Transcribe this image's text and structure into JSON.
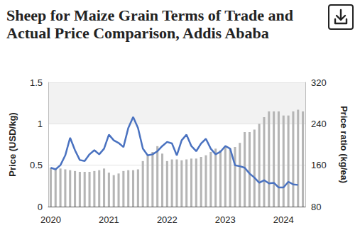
{
  "chart_data": {
    "type": "combo",
    "title": "Sheep for Maize Grain Terms of Trade and Actual Price Comparison, Addis Ababa",
    "ylabel": "Price (USD/kg)",
    "y2label": "Price ratio (kg/ea)",
    "categories": [
      "2020",
      null,
      null,
      null,
      null,
      null,
      null,
      null,
      null,
      null,
      null,
      null,
      "2021",
      null,
      null,
      null,
      null,
      null,
      null,
      null,
      null,
      null,
      null,
      null,
      "2022",
      null,
      null,
      null,
      null,
      null,
      null,
      null,
      null,
      null,
      null,
      null,
      "2023",
      null,
      null,
      null,
      null,
      null,
      null,
      null,
      null,
      null,
      null,
      null,
      "2024",
      null,
      null,
      null,
      null
    ],
    "series": [
      {
        "type": "bar",
        "color": "#b5b5b5",
        "values": [
          0.47,
          0.46,
          0.46,
          0.45,
          0.44,
          0.43,
          0.42,
          0.42,
          0.42,
          0.43,
          0.44,
          0.46,
          0.41,
          0.38,
          0.4,
          0.43,
          0.44,
          0.44,
          0.45,
          0.55,
          0.62,
          0.66,
          0.73,
          0.64,
          0.55,
          0.57,
          0.57,
          0.56,
          0.57,
          0.58,
          0.58,
          0.6,
          0.62,
          0.66,
          0.7,
          0.68,
          0.72,
          0.7,
          0.72,
          0.77,
          0.9,
          0.9,
          0.93,
          1.0,
          1.08,
          1.15,
          1.15,
          1.15,
          1.1,
          1.1,
          1.15,
          1.17,
          1.15
        ]
      },
      {
        "type": "line",
        "color": "#4a72c0",
        "axis": "y2",
        "values": [
          155,
          152,
          160,
          179,
          213,
          189,
          170,
          168,
          181,
          189,
          181,
          192,
          219,
          208,
          203,
          195,
          232,
          253,
          232,
          192,
          179,
          181,
          187,
          197,
          205,
          202,
          179,
          208,
          219,
          197,
          187,
          202,
          211,
          192,
          181,
          186,
          197,
          192,
          160,
          158,
          155,
          144,
          136,
          126,
          131,
          125,
          126,
          117,
          117,
          128,
          123,
          122,
          null
        ]
      }
    ],
    "ylim": [
      0,
      1.5
    ],
    "yticks": [
      0,
      0.5,
      1,
      1.5
    ],
    "y2lim": [
      80,
      320
    ],
    "y2ticks": [
      80,
      160,
      240,
      320
    ],
    "grid": true
  }
}
